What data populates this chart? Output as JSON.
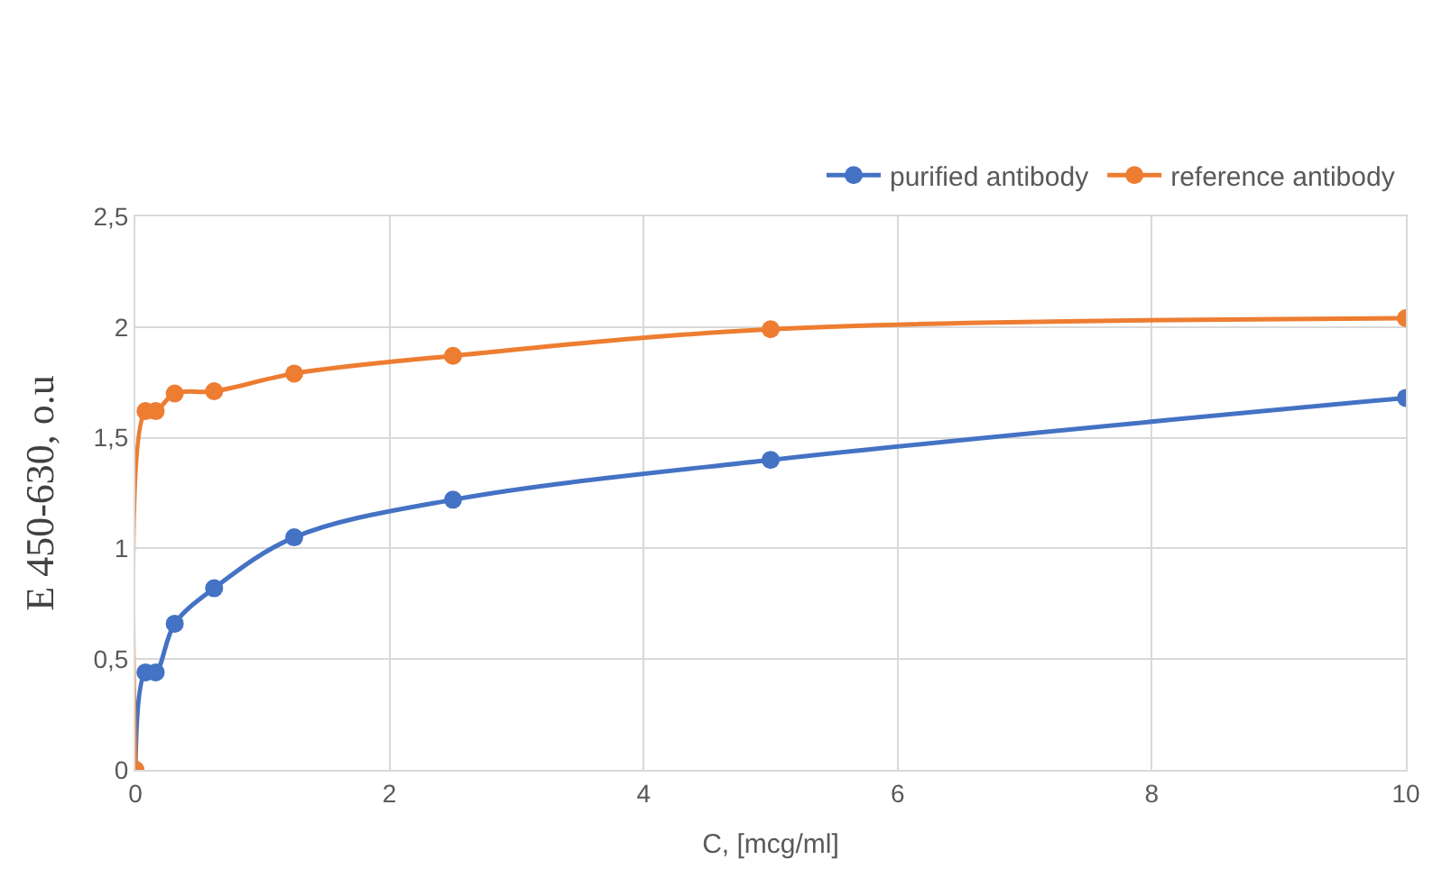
{
  "chart_data": {
    "type": "line",
    "xlabel": "C, [mcg/ml]",
    "ylabel": "E 450-630, o.u",
    "x": [
      0,
      0.08,
      0.16,
      0.31,
      0.62,
      1.25,
      2.5,
      5,
      10
    ],
    "series": [
      {
        "name": "purified antibody",
        "color": "#4472c4",
        "values": [
          0,
          0.44,
          0.44,
          0.66,
          0.82,
          1.05,
          1.22,
          1.4,
          1.68
        ]
      },
      {
        "name": "reference antibody",
        "color": "#ed7d31",
        "values": [
          0,
          1.62,
          1.62,
          1.7,
          1.71,
          1.79,
          1.87,
          1.99,
          2.04
        ]
      }
    ],
    "xlim": [
      0,
      10
    ],
    "xticks": [
      0,
      2,
      4,
      6,
      8,
      10
    ],
    "ylim": [
      0,
      2.5
    ],
    "yticks": [
      0,
      {
        "value": 0.5,
        "label": "0,5"
      },
      1,
      {
        "value": 1.5,
        "label": "1,5"
      },
      2,
      {
        "value": 2.5,
        "label": "2,5"
      }
    ],
    "grid": true,
    "legend": "top right",
    "marker": "circle"
  }
}
